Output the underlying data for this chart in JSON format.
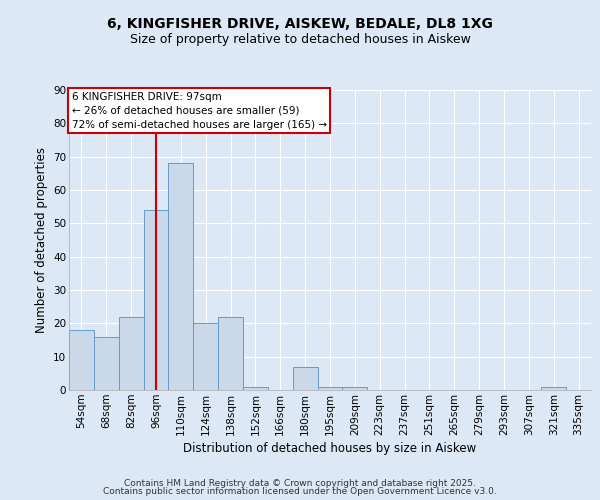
{
  "title1": "6, KINGFISHER DRIVE, AISKEW, BEDALE, DL8 1XG",
  "title2": "Size of property relative to detached houses in Aiskew",
  "xlabel": "Distribution of detached houses by size in Aiskew",
  "ylabel": "Number of detached properties",
  "categories": [
    "54sqm",
    "68sqm",
    "82sqm",
    "96sqm",
    "110sqm",
    "124sqm",
    "138sqm",
    "152sqm",
    "166sqm",
    "180sqm",
    "195sqm",
    "209sqm",
    "223sqm",
    "237sqm",
    "251sqm",
    "265sqm",
    "279sqm",
    "293sqm",
    "307sqm",
    "321sqm",
    "335sqm"
  ],
  "values": [
    18,
    16,
    22,
    54,
    68,
    20,
    22,
    1,
    0,
    7,
    1,
    1,
    0,
    0,
    0,
    0,
    0,
    0,
    0,
    1,
    0
  ],
  "bar_color": "#c9d9ea",
  "bar_edge_color": "#6699cc",
  "bar_width": 1.0,
  "red_line_index": 3,
  "red_line_color": "#cc0000",
  "ylim": [
    0,
    90
  ],
  "yticks": [
    0,
    10,
    20,
    30,
    40,
    50,
    60,
    70,
    80,
    90
  ],
  "annotation_text": "6 KINGFISHER DRIVE: 97sqm\n← 26% of detached houses are smaller (59)\n72% of semi-detached houses are larger (165) →",
  "annotation_box_color": "#ffffff",
  "annotation_box_edge": "#cc0000",
  "bg_color": "#dce8f5",
  "grid_color": "#ffffff",
  "footer1": "Contains HM Land Registry data © Crown copyright and database right 2025.",
  "footer2": "Contains public sector information licensed under the Open Government Licence v3.0.",
  "title1_fontsize": 10,
  "title2_fontsize": 9,
  "xlabel_fontsize": 8.5,
  "ylabel_fontsize": 8.5,
  "tick_fontsize": 7.5,
  "annotation_fontsize": 7.5,
  "footer_fontsize": 6.5
}
